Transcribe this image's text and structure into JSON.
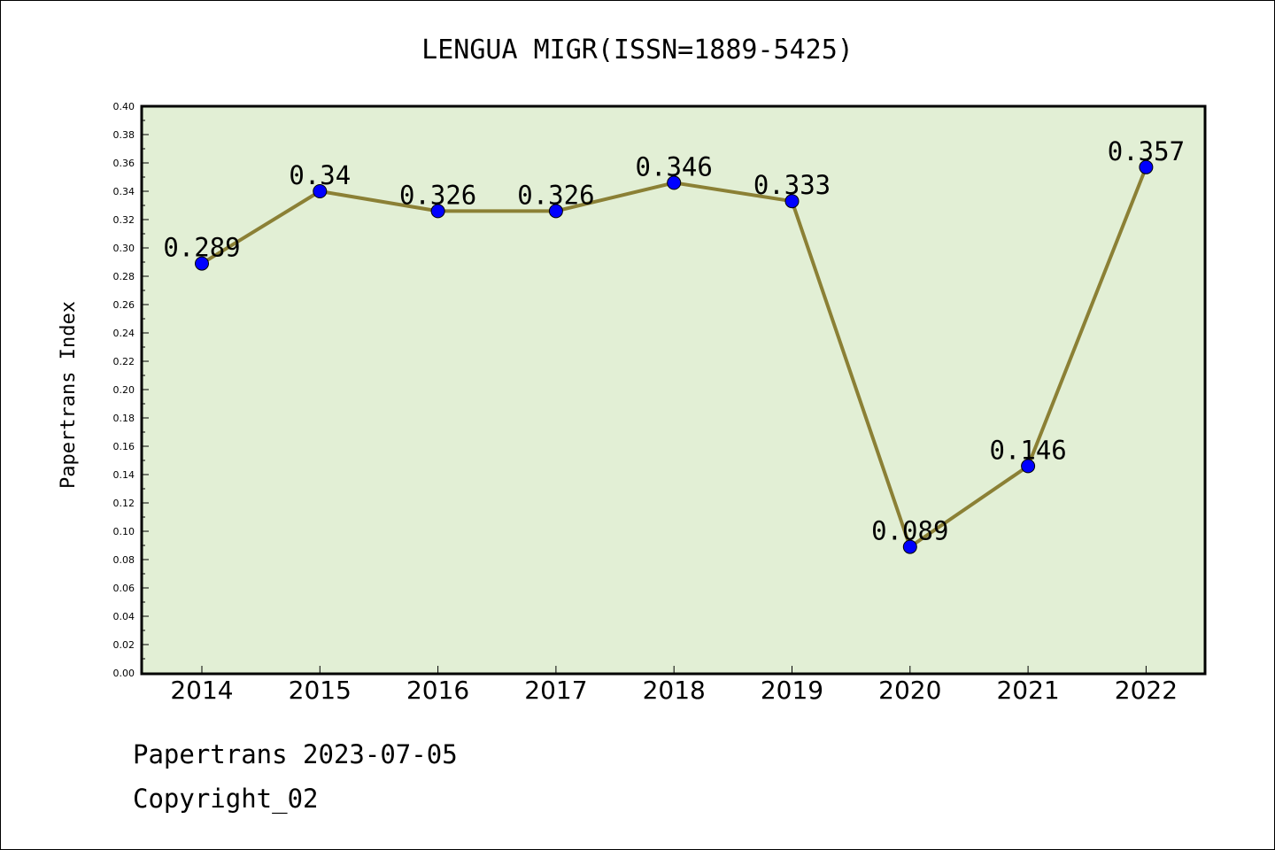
{
  "chart_data": {
    "type": "line",
    "title": "LENGUA MIGR(ISSN=1889-5425)",
    "xlabel": "",
    "ylabel": "Papertrans Index",
    "categories": [
      "2014",
      "2015",
      "2016",
      "2017",
      "2018",
      "2019",
      "2020",
      "2021",
      "2022"
    ],
    "values": [
      0.289,
      0.34,
      0.326,
      0.326,
      0.346,
      0.333,
      0.089,
      0.146,
      0.357
    ],
    "data_labels": [
      "0.289",
      "0.34",
      "0.326",
      "0.326",
      "0.346",
      "0.333",
      "0.089",
      "0.146",
      "0.357"
    ],
    "ylim": [
      0,
      0.4
    ],
    "yticks": [
      "0.00",
      "0.02",
      "0.04",
      "0.06",
      "0.08",
      "0.10",
      "0.12",
      "0.14",
      "0.16",
      "0.18",
      "0.20",
      "0.22",
      "0.24",
      "0.26",
      "0.28",
      "0.30",
      "0.32",
      "0.34",
      "0.36",
      "0.38",
      "0.40"
    ],
    "grid": false,
    "colors": {
      "plot_background": "#e2efd5",
      "line": "#8b8035",
      "marker": "#0000ff"
    }
  },
  "footer": {
    "source": "Papertrans 2023-07-05",
    "copyright": "Copyright_02"
  }
}
